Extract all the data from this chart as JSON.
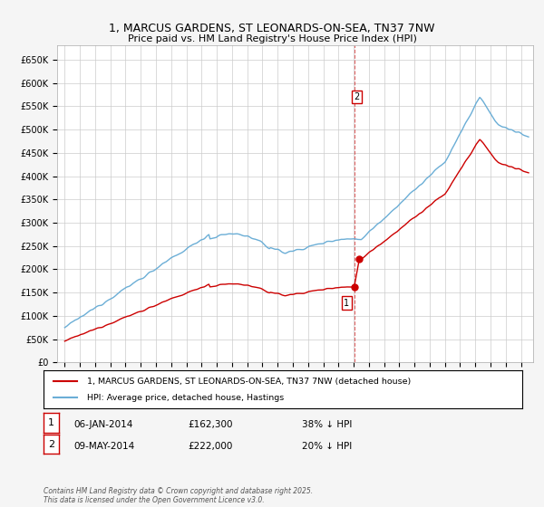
{
  "title": "1, MARCUS GARDENS, ST LEONARDS-ON-SEA, TN37 7NW",
  "subtitle": "Price paid vs. HM Land Registry's House Price Index (HPI)",
  "hpi_label": "HPI: Average price, detached house, Hastings",
  "property_label": "1, MARCUS GARDENS, ST LEONARDS-ON-SEA, TN37 7NW (detached house)",
  "hpi_color": "#6baed6",
  "property_color": "#cc0000",
  "sale1_date_num": 2014.04,
  "sale1_price": 162300,
  "sale1_date_str": "06-JAN-2014",
  "sale1_pct": "38% ↓ HPI",
  "sale2_date_num": 2014.37,
  "sale2_price": 222000,
  "sale2_date_str": "09-MAY-2014",
  "sale2_pct": "20% ↓ HPI",
  "vline_x": 2014.04,
  "ylim": [
    0,
    680000
  ],
  "xlim": [
    1994.5,
    2025.8
  ],
  "ytick_values": [
    0,
    50000,
    100000,
    150000,
    200000,
    250000,
    300000,
    350000,
    400000,
    450000,
    500000,
    550000,
    600000,
    650000
  ],
  "ytick_labels": [
    "£0",
    "£50K",
    "£100K",
    "£150K",
    "£200K",
    "£250K",
    "£300K",
    "£350K",
    "£400K",
    "£450K",
    "£500K",
    "£550K",
    "£600K",
    "£650K"
  ],
  "footer": "Contains HM Land Registry data © Crown copyright and database right 2025.\nThis data is licensed under the Open Government Licence v3.0.",
  "bg_color": "#f5f5f5",
  "plot_bg_color": "#ffffff"
}
